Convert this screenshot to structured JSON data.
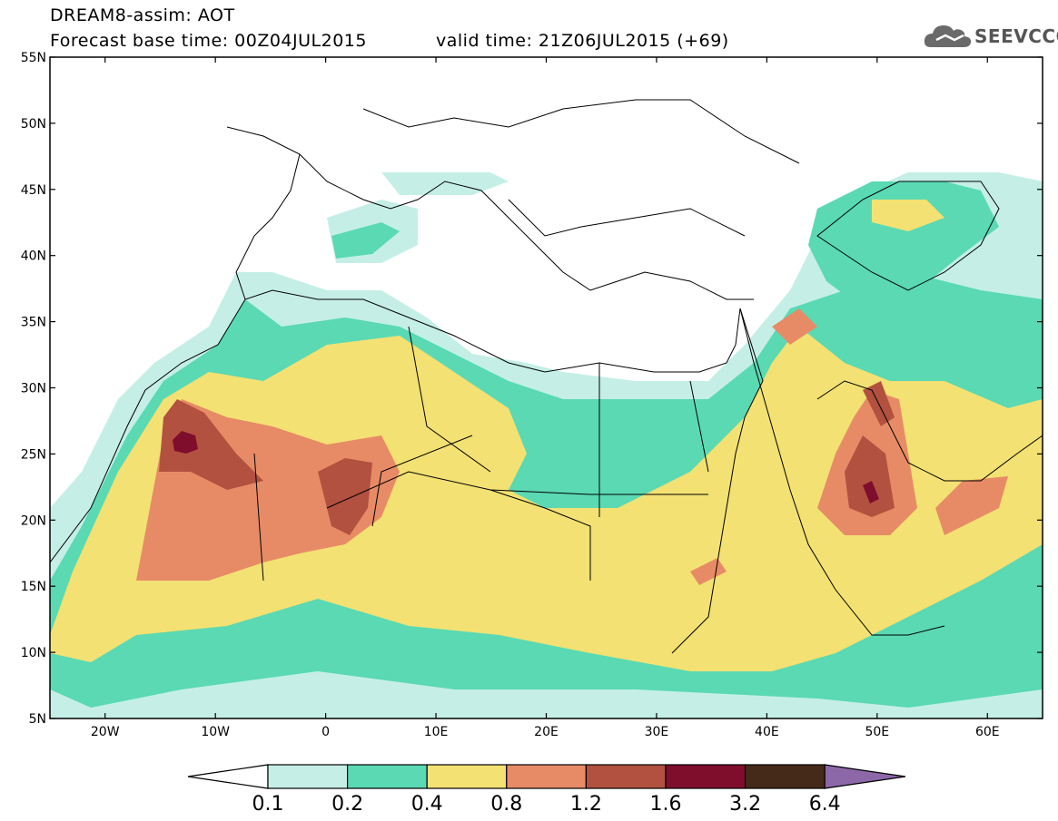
{
  "header": {
    "line1": "DREAM8-assim: AOT",
    "line2": "Forecast base time: 00Z04JUL2015",
    "line3": "valid time: 21Z06JUL2015 (+69)"
  },
  "logo": {
    "text": "SEEVCCC",
    "icon": "cloud-icon"
  },
  "map": {
    "lat_labels": [
      "55N",
      "50N",
      "45N",
      "40N",
      "35N",
      "30N",
      "25N",
      "20N",
      "15N",
      "10N",
      "5N"
    ],
    "lon_labels": [
      "20W",
      "10W",
      "0",
      "10E",
      "20E",
      "30E",
      "40E",
      "50E",
      "60E"
    ],
    "lon_range": [
      -25,
      65
    ],
    "lat_range": [
      5,
      55
    ]
  },
  "colorbar": {
    "labels": [
      "0.1",
      "0.2",
      "0.4",
      "0.8",
      "1.2",
      "1.6",
      "3.2",
      "6.4"
    ],
    "colors": [
      "#ffffff",
      "#c5efe6",
      "#5ad9b3",
      "#f3e173",
      "#e78b66",
      "#b2513f",
      "#7f0e2c",
      "#452a1a",
      "#8d68a8"
    ]
  }
}
